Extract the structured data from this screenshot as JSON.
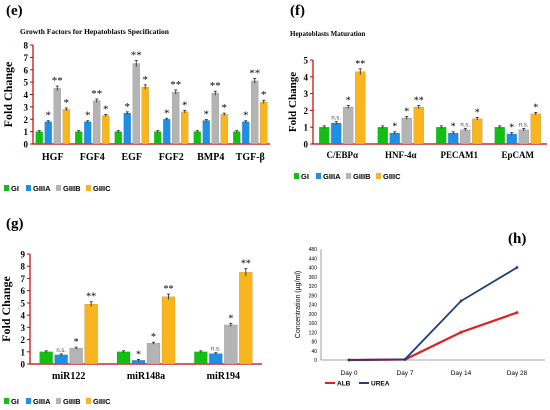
{
  "colors": {
    "GI": "#12c012",
    "GIIIA": "#1e8fe6",
    "GIIIB": "#b4b4b4",
    "GIIIC": "#f9b51d",
    "ALB": "#e02020",
    "UREA": "#1f3f7a",
    "axis_red": "#c00000"
  },
  "chart_data": [
    {
      "panel": "(e)",
      "type": "bar",
      "title": "Growth Factors for Hepatoblasts Specification",
      "ylabel": "Fold Change",
      "ylim": [
        0,
        8
      ],
      "yticks": [
        "0",
        "1",
        "2",
        "3",
        "4",
        "5",
        "6",
        "7",
        "8"
      ],
      "categories": [
        "HGF",
        "FGF4",
        "EGF",
        "FGF2",
        "BMP4",
        "TGF-β"
      ],
      "series": [
        {
          "name": "GI",
          "values": [
            1,
            1,
            1,
            1,
            1,
            1
          ]
        },
        {
          "name": "GIIIA",
          "values": [
            1.8,
            1.8,
            2.5,
            2.0,
            1.9,
            1.8
          ]
        },
        {
          "name": "GIIIB",
          "values": [
            4.5,
            3.5,
            6.5,
            4.2,
            4.1,
            5.1
          ]
        },
        {
          "name": "GIIIC",
          "values": [
            2.8,
            2.3,
            4.6,
            2.6,
            2.4,
            3.4
          ]
        }
      ],
      "annotations": [
        [
          "",
          "*",
          "**",
          "*"
        ],
        [
          "",
          "*",
          "**",
          "*"
        ],
        [
          "",
          "*",
          "**",
          "*"
        ],
        [
          "",
          "*",
          "**",
          "*"
        ],
        [
          "",
          "*",
          "**",
          "*"
        ],
        [
          "",
          "*",
          "**",
          "*"
        ]
      ],
      "legend": [
        "GI",
        "GIIIA",
        "GIIIB",
        "GIIIC"
      ]
    },
    {
      "panel": "(f)",
      "type": "bar",
      "title": "Hepatoblasts Maturation",
      "ylabel": "Fold Change",
      "ylim": [
        0,
        5
      ],
      "yticks": [
        "0",
        "1",
        "2",
        "3",
        "4",
        "5"
      ],
      "categories": [
        "C/EBPα",
        "HNF-4α",
        "PECAM1",
        "EpCAM"
      ],
      "series": [
        {
          "name": "GI",
          "values": [
            1,
            1,
            1,
            1
          ]
        },
        {
          "name": "GIIIA",
          "values": [
            1.25,
            0.65,
            0.65,
            0.6
          ]
        },
        {
          "name": "GIIIB",
          "values": [
            2.2,
            1.55,
            0.85,
            0.85
          ]
        },
        {
          "name": "GIIIC",
          "values": [
            4.3,
            2.2,
            1.5,
            1.8
          ]
        }
      ],
      "annotations": [
        [
          "",
          "n.s.",
          "*",
          "**"
        ],
        [
          "",
          "*",
          "*",
          "**"
        ],
        [
          "",
          "*",
          "n.s.",
          "*"
        ],
        [
          "",
          "*",
          "n.s.",
          "*"
        ]
      ],
      "legend": [
        "GI",
        "GIIIA",
        "GIIIB",
        "GIIIC"
      ]
    },
    {
      "panel": "(g)",
      "type": "bar",
      "title": "",
      "ylabel": "Fold Change",
      "ylim": [
        0,
        9
      ],
      "yticks": [
        "0",
        "1",
        "2",
        "3",
        "4",
        "5",
        "6",
        "7",
        "8",
        "9"
      ],
      "categories": [
        "miR122",
        "miR148a",
        "miR194"
      ],
      "series": [
        {
          "name": "GI",
          "values": [
            1,
            1,
            1
          ]
        },
        {
          "name": "GIIIA",
          "values": [
            0.75,
            0.3,
            0.85
          ]
        },
        {
          "name": "GIIIB",
          "values": [
            1.3,
            1.7,
            3.2
          ]
        },
        {
          "name": "GIIIC",
          "values": [
            4.9,
            5.5,
            7.5
          ]
        }
      ],
      "annotations": [
        [
          "",
          "n.s.",
          "*",
          "**"
        ],
        [
          "",
          "*",
          "*",
          "**"
        ],
        [
          "",
          "n.s.",
          "*",
          "**"
        ]
      ],
      "legend": [
        "GI",
        "GIIIA",
        "GIIIB",
        "GIIIC"
      ]
    },
    {
      "panel": "(h)",
      "type": "line",
      "title": "",
      "ylabel": "Concentration (µg/ml)",
      "ylim": [
        0,
        480
      ],
      "yticks": [
        "0",
        "40",
        "80",
        "120",
        "160",
        "200",
        "240",
        "280",
        "320",
        "360",
        "400",
        "440",
        "480"
      ],
      "categories": [
        "Day 0",
        "Day 7",
        "Day 14",
        "Day 28"
      ],
      "series": [
        {
          "name": "ALB",
          "values": [
            0,
            2,
            120,
            205
          ]
        },
        {
          "name": "UREA",
          "values": [
            0,
            3,
            255,
            400
          ]
        }
      ],
      "legend": [
        "ALB",
        "UREA"
      ]
    }
  ]
}
